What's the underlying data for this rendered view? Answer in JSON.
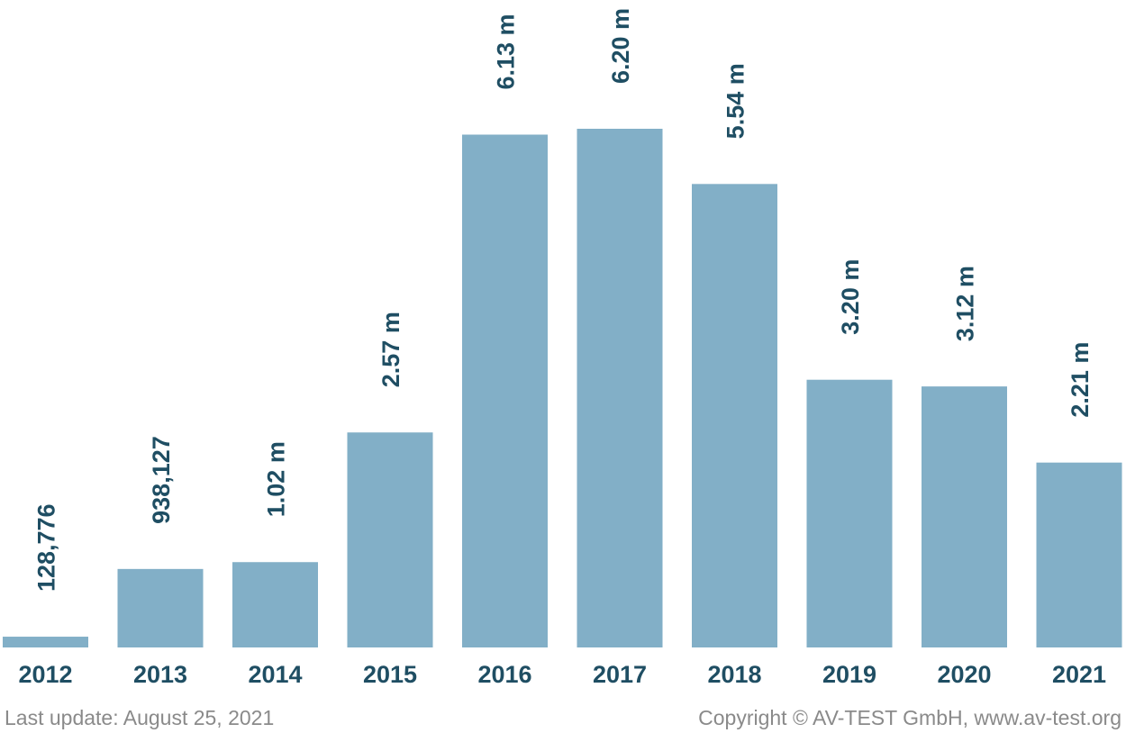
{
  "chart_data": {
    "type": "bar",
    "categories": [
      "2012",
      "2013",
      "2014",
      "2015",
      "2016",
      "2017",
      "2018",
      "2019",
      "2020",
      "2021"
    ],
    "values": [
      128776,
      938127,
      1020000,
      2570000,
      6130000,
      6200000,
      5540000,
      3200000,
      3120000,
      2210000
    ],
    "value_labels": [
      "128,776",
      "938,127",
      "1.02 m",
      "2.57 m",
      "6.13 m",
      "6.20 m",
      "5.54 m",
      "3.20 m",
      "3.12 m",
      "2.21 m"
    ],
    "color": "#82afc7",
    "footer_left": "Last update: August 25, 2021",
    "footer_right": "Copyright © AV-TEST GmbH, www.av-test.org"
  }
}
